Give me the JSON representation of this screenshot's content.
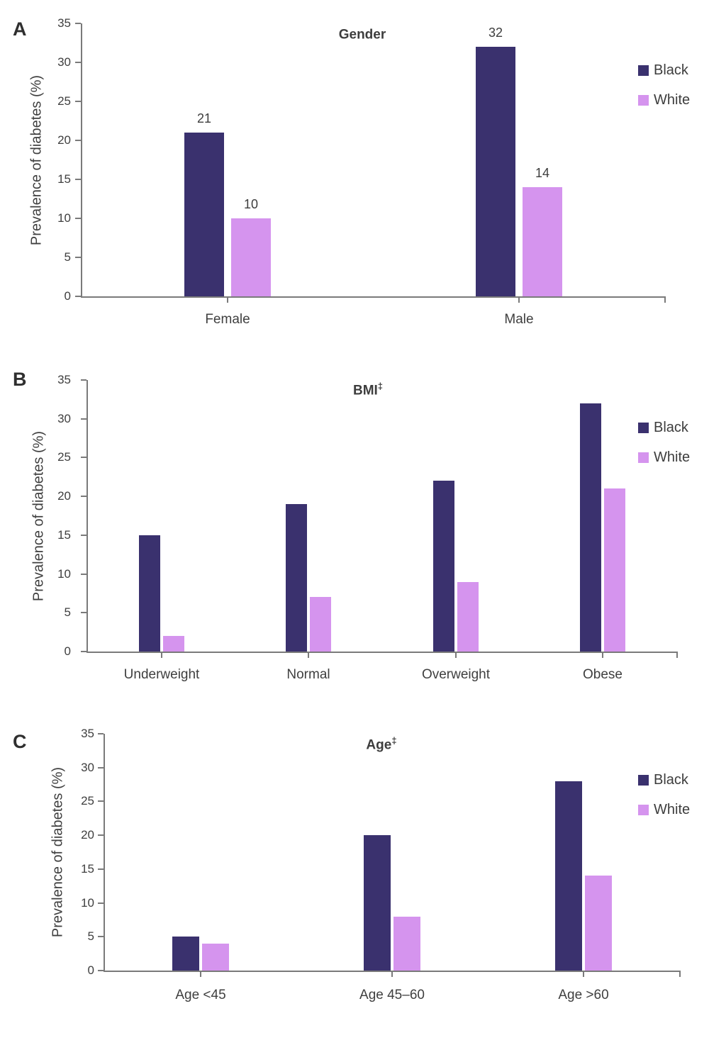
{
  "figure": {
    "series_colors": {
      "black": "#3A316E",
      "white": "#D594EE"
    },
    "axis_color": "#7a7a7a",
    "text_color": "#3f3f3f"
  },
  "chart_data": [
    {
      "type": "bar",
      "panel": "A",
      "title": "Gender",
      "title_sup": "",
      "ylabel": "Prevalence of diabetes (%)",
      "ylim": [
        0,
        35
      ],
      "yticks": [
        0,
        5,
        10,
        15,
        20,
        25,
        30,
        35
      ],
      "grid": false,
      "legend_position": "right-top",
      "show_value_labels": true,
      "categories": [
        "Female",
        "Male"
      ],
      "series": [
        {
          "name": "Black",
          "color_key": "black",
          "values": [
            21,
            32
          ]
        },
        {
          "name": "White",
          "color_key": "white",
          "values": [
            10,
            14
          ]
        }
      ],
      "legend": [
        {
          "label": "Black",
          "color_key": "black"
        },
        {
          "label": "White",
          "color_key": "white"
        }
      ]
    },
    {
      "type": "bar",
      "panel": "B",
      "title": "BMI",
      "title_sup": "‡",
      "ylabel": "Prevalence of diabetes (%)",
      "ylim": [
        0,
        35
      ],
      "yticks": [
        0,
        5,
        10,
        15,
        20,
        25,
        30,
        35
      ],
      "grid": false,
      "legend_position": "right-top",
      "show_value_labels": false,
      "categories": [
        "Underweight",
        "Normal",
        "Overweight",
        "Obese"
      ],
      "series": [
        {
          "name": "Black",
          "color_key": "black",
          "values": [
            15,
            19,
            22,
            32
          ]
        },
        {
          "name": "White",
          "color_key": "white",
          "values": [
            2,
            7,
            9,
            21
          ]
        }
      ],
      "legend": [
        {
          "label": "Black",
          "color_key": "black"
        },
        {
          "label": "White",
          "color_key": "white"
        }
      ]
    },
    {
      "type": "bar",
      "panel": "C",
      "title": "Age",
      "title_sup": "‡",
      "ylabel": "Prevalence of diabetes (%)",
      "ylim": [
        0,
        35
      ],
      "yticks": [
        0,
        5,
        10,
        15,
        20,
        25,
        30,
        35
      ],
      "grid": false,
      "legend_position": "right-top",
      "show_value_labels": false,
      "categories": [
        "Age <45",
        "Age  45–60",
        "Age >60"
      ],
      "series": [
        {
          "name": "Black",
          "color_key": "black",
          "values": [
            5,
            20,
            28
          ]
        },
        {
          "name": "White",
          "color_key": "white",
          "values": [
            4,
            8,
            14
          ]
        }
      ],
      "legend": [
        {
          "label": "Black",
          "color_key": "black"
        },
        {
          "label": "White",
          "color_key": "white"
        }
      ]
    }
  ]
}
